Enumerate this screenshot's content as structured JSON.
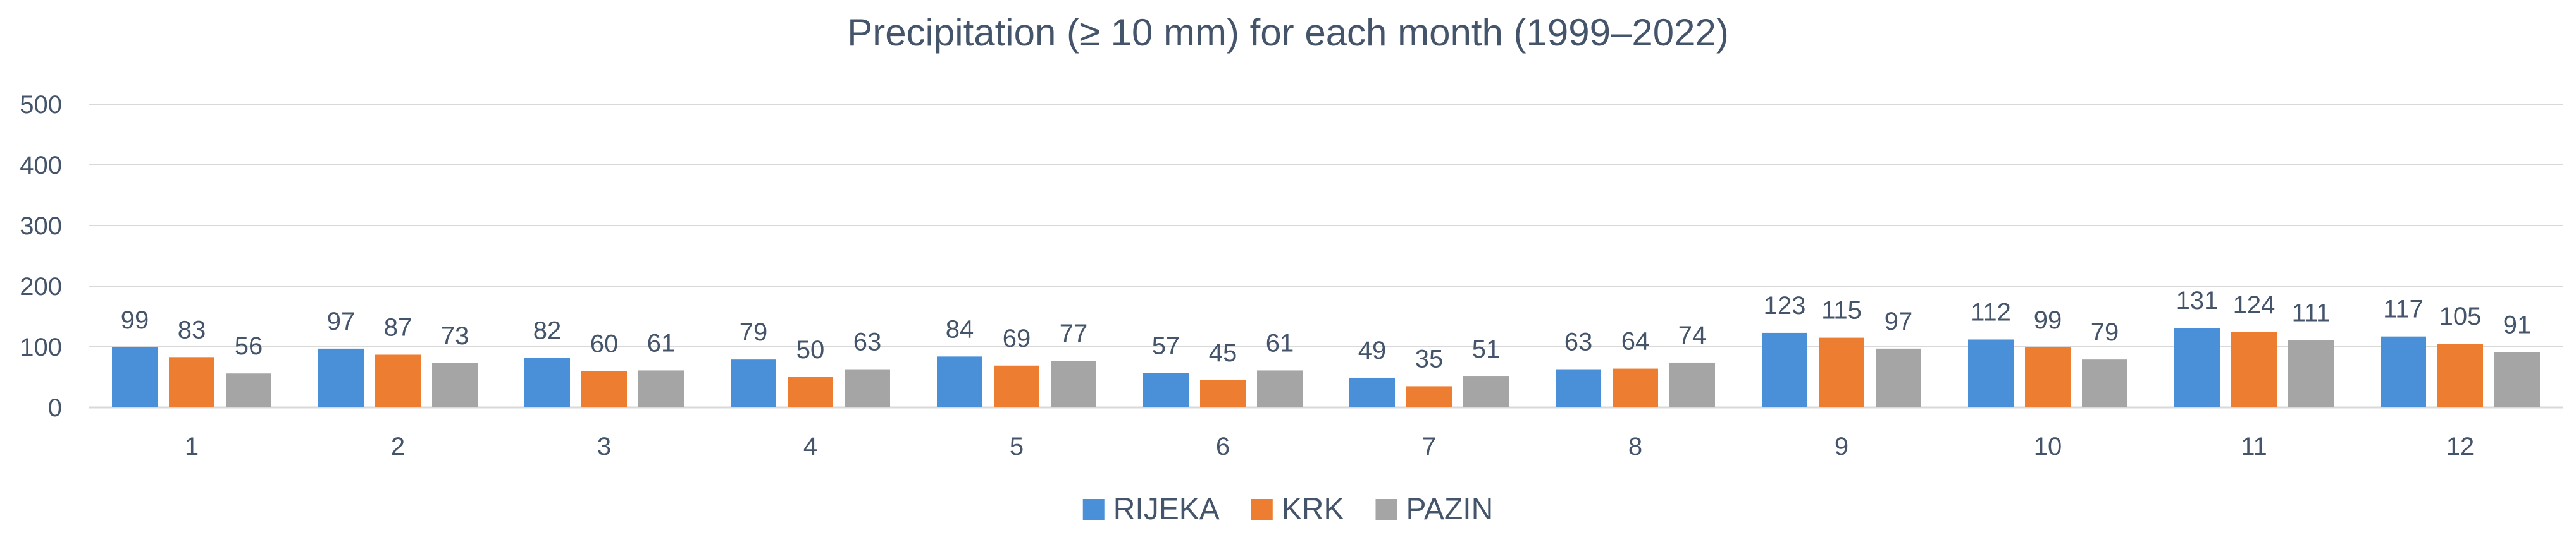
{
  "chart_data": {
    "type": "bar",
    "title": "Precipitation (≥ 10 mm) for each month (1999–2022)",
    "categories": [
      "1",
      "2",
      "3",
      "4",
      "5",
      "6",
      "7",
      "8",
      "9",
      "10",
      "11",
      "12"
    ],
    "series": [
      {
        "name": "RIJEKA",
        "color": "#4a90d9",
        "values": [
          99,
          97,
          82,
          79,
          84,
          57,
          49,
          63,
          123,
          112,
          131,
          117
        ]
      },
      {
        "name": "KRK",
        "color": "#ed7d31",
        "values": [
          83,
          87,
          60,
          50,
          69,
          45,
          35,
          64,
          115,
          99,
          124,
          105
        ]
      },
      {
        "name": "PAZIN",
        "color": "#a5a5a5",
        "values": [
          56,
          73,
          61,
          63,
          77,
          61,
          51,
          74,
          97,
          79,
          111,
          91
        ]
      }
    ],
    "y_ticks": [
      "0",
      "100",
      "200",
      "300",
      "400",
      "500"
    ],
    "ylim": [
      0,
      500
    ],
    "xlabel": "",
    "ylabel": "",
    "grid": true,
    "legend_position": "bottom",
    "data_labels": true,
    "colors": {
      "text": "#44546a",
      "grid": "#d9d9d9"
    }
  }
}
